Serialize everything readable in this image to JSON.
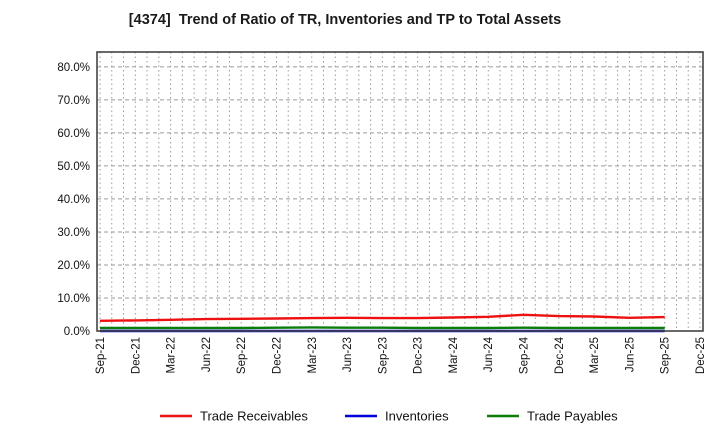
{
  "title": "[4374]  Trend of Ratio of TR, Inventories and TP to Total Assets",
  "chart_data": {
    "type": "line",
    "x": [
      "Sep-21",
      "Dec-21",
      "Mar-22",
      "Jun-22",
      "Sep-22",
      "Dec-22",
      "Mar-23",
      "Jun-23",
      "Sep-23",
      "Dec-23",
      "Mar-24",
      "Jun-24",
      "Sep-24",
      "Dec-24",
      "Mar-25",
      "Jun-25",
      "Sep-25",
      "Dec-25"
    ],
    "note": "data series end at Sep-25; Dec-25 has no data",
    "series": [
      {
        "name": "Trade Receivables",
        "color": "#ee1111",
        "values": [
          3.1,
          3.2,
          3.4,
          3.6,
          3.7,
          3.8,
          3.9,
          4.0,
          3.9,
          3.9,
          4.1,
          4.3,
          4.9,
          4.5,
          4.4,
          4.0,
          4.2
        ]
      },
      {
        "name": "Inventories",
        "color": "#0000dd",
        "values": [
          0.0,
          0.0,
          0.0,
          0.0,
          0.0,
          0.0,
          0.0,
          0.0,
          0.0,
          0.0,
          0.0,
          0.0,
          0.0,
          0.0,
          0.0,
          0.0,
          0.0
        ]
      },
      {
        "name": "Trade Payables",
        "color": "#0b7d0b",
        "values": [
          0.9,
          0.9,
          0.9,
          0.9,
          0.9,
          1.0,
          1.1,
          1.0,
          1.0,
          0.9,
          0.9,
          0.9,
          1.0,
          0.9,
          0.9,
          0.9,
          0.9
        ]
      }
    ],
    "y_ticks": [
      "0.0%",
      "10.0%",
      "20.0%",
      "30.0%",
      "40.0%",
      "50.0%",
      "60.0%",
      "70.0%",
      "80.0%"
    ],
    "ylim": [
      0,
      84.5
    ],
    "y_tick_step_pct": 10,
    "grid": true,
    "minor_vertical_grid": "monthly",
    "legend_position": "bottom",
    "colors": {
      "grid": "#9a9a9a",
      "axis_border": "#444444",
      "background": "#ffffff",
      "title_text": "#1a1a1a",
      "tick_text": "#111111"
    }
  }
}
